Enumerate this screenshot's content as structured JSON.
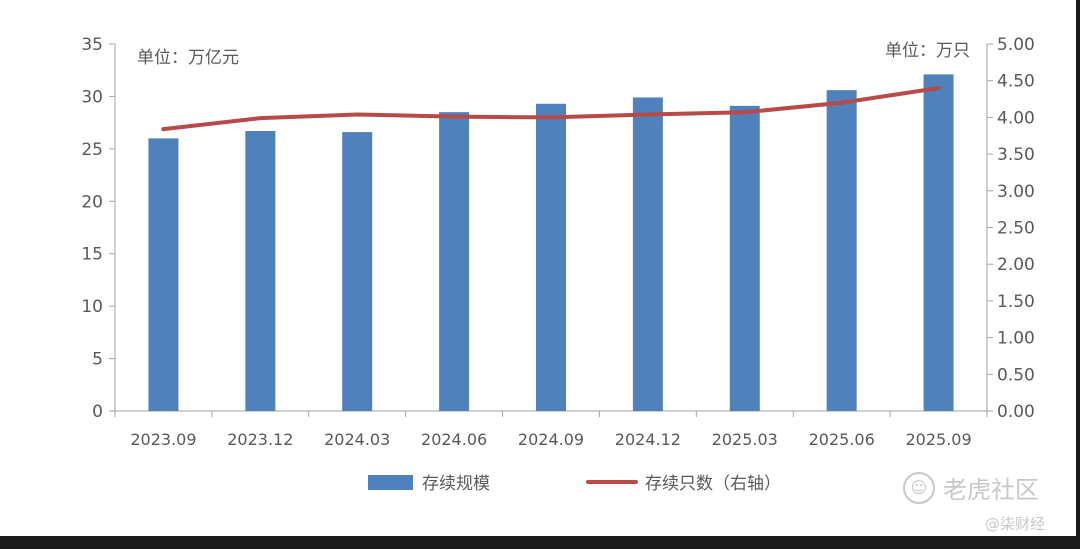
{
  "chart_data": {
    "type": "bar",
    "categories": [
      "2023.09",
      "2023.12",
      "2024.03",
      "2024.06",
      "2024.09",
      "2024.12",
      "2025.03",
      "2025.06",
      "2025.09"
    ],
    "series": [
      {
        "name": "存续规模",
        "type": "bar",
        "axis": "left",
        "values": [
          26.0,
          26.7,
          26.6,
          28.5,
          29.3,
          29.9,
          29.1,
          30.6,
          32.1
        ]
      },
      {
        "name": "存续只数（右轴）",
        "type": "line",
        "axis": "right",
        "values": [
          3.84,
          3.99,
          4.04,
          4.01,
          4.0,
          4.04,
          4.07,
          4.2,
          4.4
        ]
      }
    ],
    "left_axis": {
      "unit_label": "单位：万亿元",
      "min": 0,
      "max": 35,
      "ticks": [
        "0",
        "5",
        "10",
        "15",
        "20",
        "25",
        "30",
        "35"
      ]
    },
    "right_axis": {
      "unit_label": "单位：万只",
      "min": 0,
      "max": 5,
      "ticks": [
        "0.00",
        "0.50",
        "1.00",
        "1.50",
        "2.00",
        "2.50",
        "3.00",
        "3.50",
        "4.00",
        "4.50",
        "5.00"
      ]
    },
    "legend_position": "bottom",
    "grid": false,
    "colors": {
      "bar": "#4f81bd",
      "line": "#b84a47",
      "axis": "#a6a6a6",
      "text": "#595959"
    }
  },
  "watermark": {
    "logo_text": "老虎社区",
    "icon": "tiger-community-icon",
    "author": "@柒财经"
  }
}
